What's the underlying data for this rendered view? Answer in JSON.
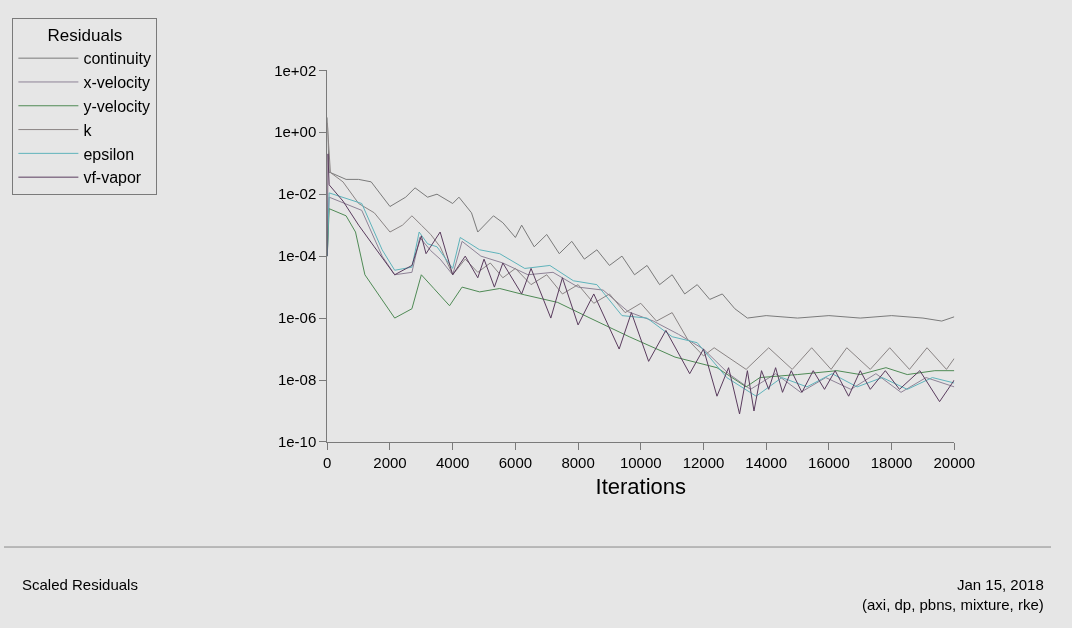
{
  "chart_data": {
    "type": "line",
    "xlabel": "Iterations",
    "legend_title": "Residuals",
    "log": "y",
    "grid": false,
    "legend": "top left",
    "marker": "none",
    "line_style": "solid",
    "xlim": [
      0,
      20000
    ],
    "xticks": [
      0,
      2000,
      4000,
      6000,
      8000,
      10000,
      12000,
      14000,
      16000,
      18000,
      20000
    ],
    "ylim": [
      1e-10,
      100
    ],
    "yticks": [
      {
        "value": 100,
        "label": "1e+02"
      },
      {
        "value": 1,
        "label": "1e+00"
      },
      {
        "value": 0.01,
        "label": "1e-02"
      },
      {
        "value": 0.0001,
        "label": "1e-04"
      },
      {
        "value": 1e-06,
        "label": "1e-06"
      },
      {
        "value": 1e-08,
        "label": "1e-08"
      },
      {
        "value": 1e-10,
        "label": "1e-10"
      }
    ],
    "annotations": [
      "Scaled Residuals",
      "Jan 15, 2018",
      "(axi, dp, pbns, mixture, rke)"
    ],
    "series": [
      {
        "name": "continuity",
        "color": "#7a7a7a",
        "x": [
          0,
          60,
          100,
          600,
          1000,
          1400,
          2000,
          2500,
          2800,
          3200,
          3500,
          4000,
          4200,
          4600,
          4800,
          5300,
          5600,
          6000,
          6200,
          6600,
          7000,
          7400,
          7800,
          8200,
          8600,
          9000,
          9400,
          9800,
          10200,
          10600,
          11000,
          11400,
          11800,
          12200,
          12600,
          13000,
          13400,
          14000,
          15000,
          16000,
          17000,
          18000,
          19000,
          19600,
          20000
        ],
        "values": [
          3,
          0.05,
          0.05,
          0.03,
          0.03,
          0.025,
          0.004,
          0.008,
          0.016,
          0.008,
          0.01,
          0.005,
          0.008,
          0.0025,
          0.0006,
          0.002,
          0.0012,
          0.0004,
          0.001,
          0.0002,
          0.0005,
          0.00012,
          0.0003,
          8e-05,
          0.00016,
          5e-05,
          0.0001,
          2.5e-05,
          5e-05,
          1.2e-05,
          2.5e-05,
          6e-06,
          1.2e-05,
          4e-06,
          6e-06,
          2e-06,
          1e-06,
          1.2e-06,
          1e-06,
          1.2e-06,
          1e-06,
          1.2e-06,
          1e-06,
          8e-07,
          1.1e-06
        ]
      },
      {
        "name": "x-velocity",
        "color": "#8e8296",
        "x": [
          0,
          60,
          1100,
          1750,
          2150,
          2700,
          2950,
          3300,
          3600,
          4000,
          4300,
          4900,
          5600,
          6400,
          7200,
          8000,
          8800,
          9600,
          10400,
          11200,
          12000,
          12800,
          13500,
          14300,
          15100,
          15900,
          16700,
          17500,
          18300,
          19100,
          20000
        ],
        "values": [
          0.0001,
          0.008,
          0.003,
          0.0001,
          2.5e-05,
          3e-05,
          0.0004,
          0.00015,
          8e-05,
          2.5e-05,
          0.0003,
          0.0001,
          6e-05,
          2.5e-05,
          3e-05,
          1e-05,
          8e-06,
          1.6e-06,
          8e-07,
          3e-07,
          1e-07,
          1.6e-08,
          5e-09,
          1.6e-08,
          4e-09,
          1.2e-08,
          5e-09,
          1.6e-08,
          4e-09,
          1.2e-08,
          6e-09
        ]
      },
      {
        "name": "y-velocity",
        "color": "#4f8a55",
        "x": [
          0,
          60,
          600,
          900,
          1200,
          2150,
          2700,
          3000,
          3400,
          3900,
          4300,
          4860,
          5500,
          6300,
          7350,
          8380,
          9630,
          11090,
          12430,
          13360,
          13800,
          15000,
          16260,
          17000,
          17820,
          18500,
          19380,
          20000
        ],
        "values": [
          0.0001,
          0.0034,
          0.002,
          0.0006,
          2.5e-05,
          1e-06,
          2e-06,
          2.5e-05,
          9e-06,
          2.5e-06,
          1e-05,
          7e-06,
          9e-06,
          5.6e-06,
          3.2e-06,
          1e-06,
          2.5e-07,
          5.5e-08,
          2.5e-08,
          6e-09,
          1.2e-08,
          1.5e-08,
          2e-08,
          1.5e-08,
          2.5e-08,
          1.5e-08,
          2e-08,
          2e-08
        ]
      },
      {
        "name": "k",
        "color": "#8a8484",
        "x": [
          0,
          100,
          500,
          1000,
          1500,
          2000,
          2400,
          2700,
          3000,
          3300,
          3600,
          4000,
          4400,
          4800,
          5200,
          5600,
          6000,
          6500,
          7000,
          7500,
          8000,
          8500,
          9000,
          9500,
          10000,
          10500,
          11000,
          11500,
          12000,
          12340,
          13360,
          14080,
          14830,
          15450,
          16070,
          16570,
          17320,
          17940,
          18570,
          19130,
          19750,
          20000
        ],
        "values": [
          2,
          0.05,
          0.025,
          0.005,
          0.0025,
          0.0006,
          0.001,
          0.002,
          0.001,
          0.0005,
          0.0002,
          2.5e-05,
          8e-05,
          3e-05,
          6e-05,
          2e-05,
          4e-05,
          1.2e-05,
          2.5e-05,
          6e-06,
          1.2e-05,
          3e-06,
          6e-06,
          1.5e-06,
          3e-06,
          8e-07,
          1.5e-06,
          2e-07,
          6e-08,
          1.1e-07,
          2.2e-08,
          1.1e-07,
          2.2e-08,
          1.1e-07,
          2.2e-08,
          1.1e-07,
          2.2e-08,
          1.1e-07,
          2.2e-08,
          1.1e-07,
          2.2e-08,
          5e-08
        ]
      },
      {
        "name": "epsilon",
        "color": "#5fb3bb",
        "x": [
          0,
          60,
          1100,
          1750,
          2150,
          2700,
          2930,
          3200,
          3500,
          4000,
          4240,
          4860,
          5500,
          6300,
          7100,
          7850,
          8600,
          9400,
          10200,
          11000,
          11800,
          12740,
          13680,
          14500,
          15300,
          16100,
          16900,
          17700,
          18500,
          19300,
          20000
        ],
        "values": [
          0.0001,
          0.011,
          0.005,
          0.00016,
          3.5e-05,
          4.4e-05,
          0.0006,
          0.00025,
          0.0002,
          4e-05,
          0.0004,
          0.00016,
          0.00012,
          4e-05,
          5e-05,
          1.6e-05,
          1.2e-05,
          1.2e-06,
          1e-06,
          2.5e-07,
          1.6e-07,
          1.2e-08,
          3e-09,
          1.2e-08,
          6e-09,
          1.6e-08,
          6e-09,
          1.2e-08,
          5e-09,
          1.2e-08,
          8e-09
        ]
      },
      {
        "name": "vf-vapor",
        "color": "#5a3c5e",
        "x": [
          0,
          20,
          60,
          500,
          1000,
          1500,
          2150,
          2700,
          3000,
          3150,
          3600,
          4000,
          4400,
          4800,
          5000,
          5330,
          5600,
          6200,
          6500,
          7130,
          7500,
          8000,
          8500,
          9310,
          9700,
          10250,
          10800,
          11560,
          12000,
          12430,
          12800,
          13150,
          13400,
          13610,
          13850,
          14080,
          14300,
          14520,
          14800,
          15140,
          15500,
          15860,
          16200,
          16630,
          17000,
          17320,
          17800,
          18250,
          18900,
          19530,
          20000
        ],
        "values": [
          0.0001,
          0.2,
          0.02,
          0.006,
          0.001,
          0.0002,
          2.5e-05,
          5e-05,
          0.00045,
          0.00012,
          0.0006,
          2.5e-05,
          0.0001,
          2e-05,
          8e-05,
          1e-05,
          6e-05,
          6e-06,
          4e-05,
          1e-06,
          2e-05,
          6e-07,
          6e-06,
          1e-07,
          1.5e-06,
          4e-08,
          4e-07,
          1.6e-08,
          1e-07,
          3e-09,
          2.5e-08,
          8e-10,
          2e-08,
          1e-09,
          2e-08,
          5e-09,
          2.5e-08,
          4e-09,
          2e-08,
          4e-09,
          2e-08,
          5e-09,
          2e-08,
          3e-09,
          2e-08,
          5e-09,
          2e-08,
          5e-09,
          2e-08,
          2e-09,
          1e-08
        ]
      }
    ]
  }
}
